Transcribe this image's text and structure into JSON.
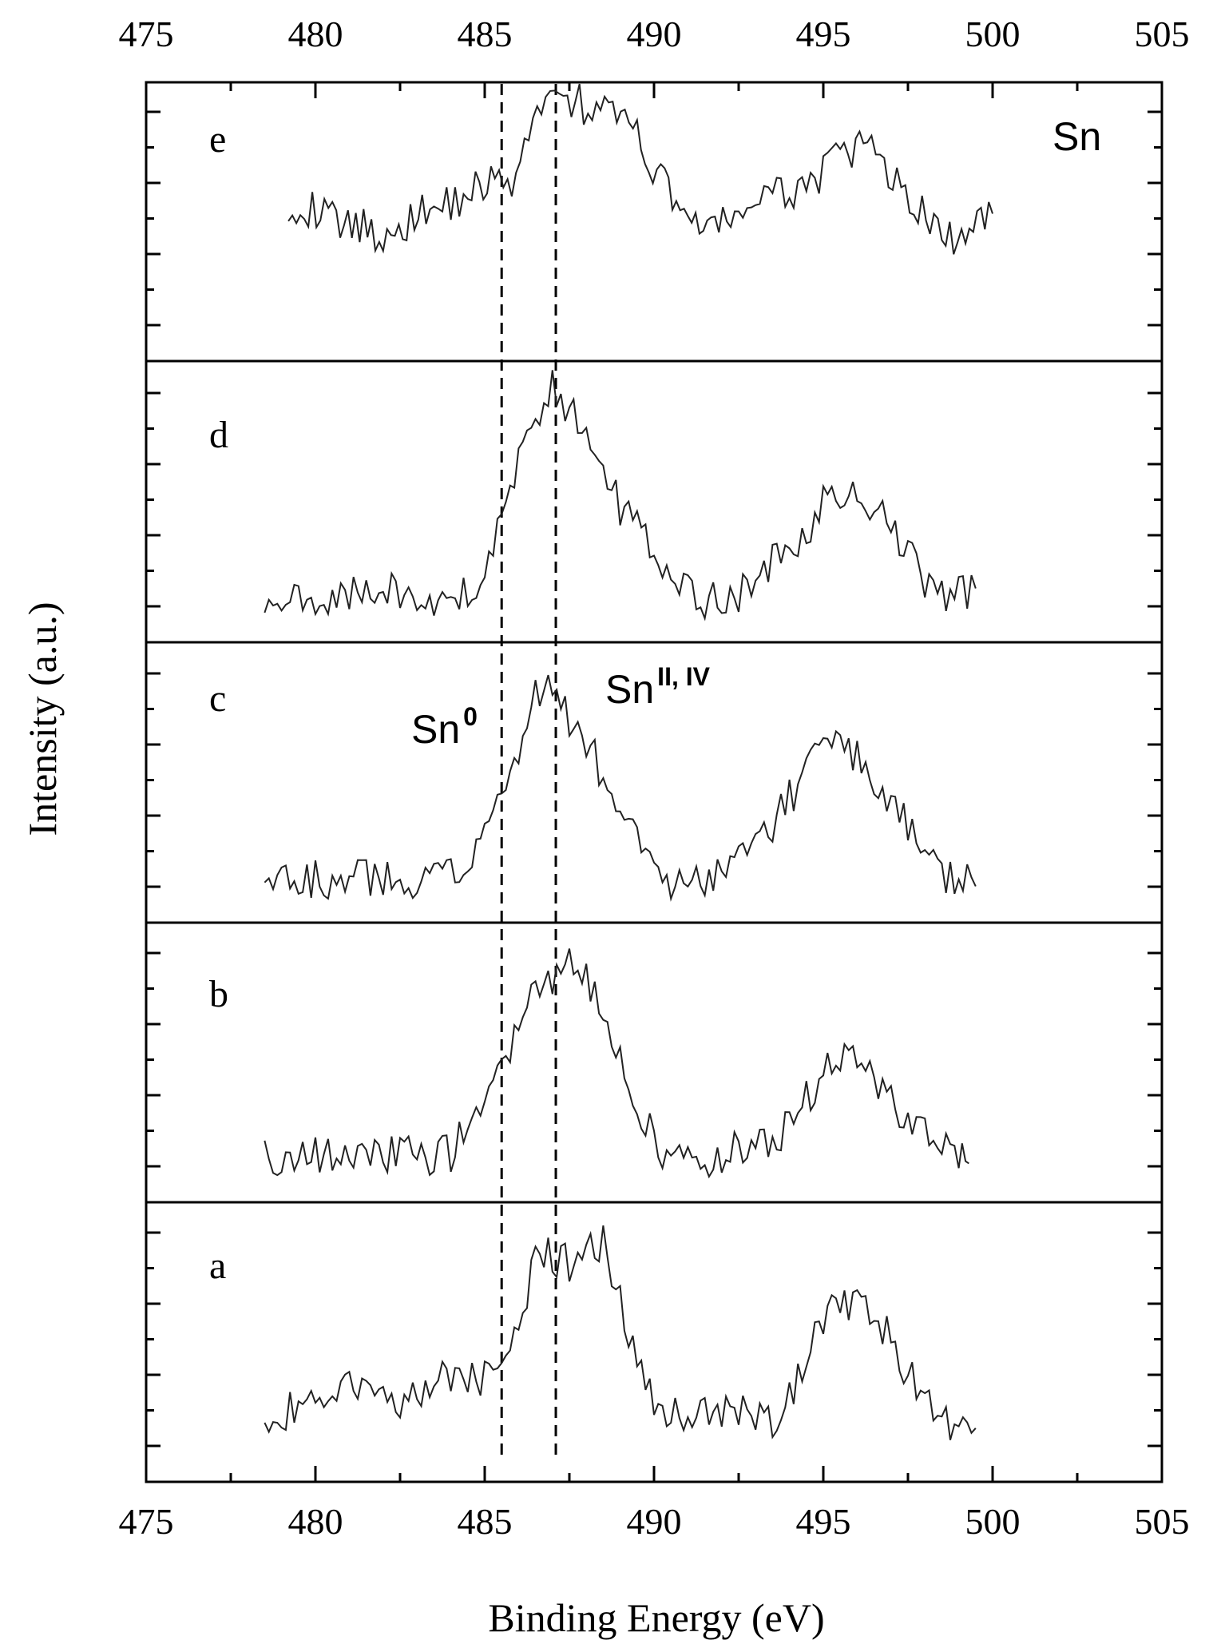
{
  "chart_data": {
    "type": "line",
    "title": "",
    "xlabel": "Binding Energy (eV)",
    "ylabel": "Intensity (a.u.)",
    "xlim": [
      475,
      505
    ],
    "x_ticks": [
      "475",
      "480",
      "485",
      "490",
      "495",
      "500",
      "505"
    ],
    "grid": false,
    "element_label": "Sn",
    "reference_lines": [
      {
        "x": 485.5,
        "label_base": "Sn",
        "label_sup": "0"
      },
      {
        "x": 487.1,
        "label_base": "Sn",
        "label_sup": "II, IV"
      }
    ],
    "panels": [
      {
        "name": "e",
        "x": [
          479.2,
          480.5,
          482.0,
          483.5,
          484.5,
          485.3,
          485.8,
          486.3,
          486.8,
          487.2,
          487.8,
          488.3,
          488.9,
          489.5,
          490.2,
          491.0,
          491.8,
          492.5,
          493.5,
          494.5,
          495.5,
          496.3,
          496.8,
          497.3,
          497.8,
          498.5,
          499.2,
          500.0
        ],
        "y": [
          0.55,
          0.48,
          0.42,
          0.52,
          0.58,
          0.65,
          0.55,
          0.85,
          1.0,
          0.98,
          0.95,
          0.9,
          0.92,
          0.8,
          0.65,
          0.5,
          0.42,
          0.52,
          0.56,
          0.62,
          0.72,
          0.78,
          0.7,
          0.62,
          0.52,
          0.42,
          0.38,
          0.5
        ]
      },
      {
        "name": "d",
        "x": [
          478.5,
          479.5,
          480.5,
          481.5,
          482.5,
          483.5,
          484.5,
          485.0,
          485.5,
          486.0,
          486.5,
          487.0,
          487.5,
          488.0,
          488.5,
          489.0,
          489.5,
          490.0,
          490.5,
          491.0,
          491.5,
          492.0,
          492.5,
          493.0,
          493.5,
          494.0,
          494.5,
          495.0,
          495.5,
          496.0,
          496.5,
          497.0,
          497.5,
          498.0,
          498.5,
          499.0,
          499.5
        ],
        "y": [
          0.08,
          0.06,
          0.1,
          0.13,
          0.1,
          0.08,
          0.12,
          0.2,
          0.38,
          0.62,
          0.8,
          0.92,
          0.85,
          0.72,
          0.55,
          0.45,
          0.38,
          0.28,
          0.18,
          0.1,
          0.06,
          0.08,
          0.1,
          0.15,
          0.22,
          0.28,
          0.36,
          0.45,
          0.5,
          0.48,
          0.44,
          0.35,
          0.25,
          0.15,
          0.08,
          0.1,
          0.12
        ]
      },
      {
        "name": "c",
        "x": [
          478.5,
          479.5,
          480.5,
          481.5,
          482.5,
          483.5,
          484.0,
          484.5,
          485.0,
          485.5,
          486.0,
          486.5,
          487.0,
          487.5,
          488.0,
          488.5,
          489.0,
          489.5,
          490.0,
          490.5,
          491.0,
          491.5,
          492.0,
          492.5,
          493.0,
          493.5,
          494.0,
          494.5,
          495.0,
          495.5,
          496.0,
          496.5,
          497.0,
          497.5,
          498.0,
          498.5,
          499.0,
          499.5
        ],
        "y": [
          0.12,
          0.08,
          0.07,
          0.08,
          0.07,
          0.09,
          0.08,
          0.13,
          0.24,
          0.4,
          0.62,
          0.84,
          0.82,
          0.72,
          0.62,
          0.5,
          0.36,
          0.22,
          0.12,
          0.06,
          0.05,
          0.08,
          0.1,
          0.15,
          0.22,
          0.3,
          0.4,
          0.52,
          0.62,
          0.62,
          0.58,
          0.48,
          0.38,
          0.28,
          0.18,
          0.1,
          0.07,
          0.05
        ]
      },
      {
        "name": "b",
        "x": [
          478.5,
          479.5,
          480.5,
          481.5,
          482.5,
          483.5,
          484.0,
          484.5,
          485.0,
          485.5,
          486.0,
          486.5,
          487.0,
          487.5,
          488.0,
          488.5,
          489.0,
          489.5,
          490.0,
          490.5,
          491.0,
          491.5,
          492.0,
          492.5,
          493.0,
          493.5,
          494.0,
          494.5,
          495.0,
          495.5,
          496.0,
          496.5,
          497.0,
          497.5,
          498.0,
          498.5,
          499.0,
          499.3
        ],
        "y": [
          0.1,
          0.08,
          0.09,
          0.1,
          0.1,
          0.09,
          0.1,
          0.2,
          0.3,
          0.42,
          0.62,
          0.8,
          0.82,
          0.86,
          0.8,
          0.68,
          0.5,
          0.32,
          0.16,
          0.08,
          0.07,
          0.08,
          0.1,
          0.11,
          0.12,
          0.14,
          0.22,
          0.32,
          0.42,
          0.5,
          0.46,
          0.4,
          0.32,
          0.22,
          0.18,
          0.12,
          0.08,
          0.06
        ]
      },
      {
        "name": "a",
        "x": [
          478.5,
          479.5,
          480.5,
          481.5,
          482.5,
          483.5,
          484.5,
          485.0,
          485.5,
          486.0,
          486.5,
          487.0,
          487.5,
          488.0,
          488.5,
          489.0,
          489.5,
          490.0,
          490.5,
          491.0,
          491.5,
          492.0,
          492.5,
          493.0,
          493.5,
          494.0,
          494.5,
          495.0,
          495.5,
          496.0,
          496.5,
          497.0,
          497.5,
          498.0,
          498.5,
          499.0,
          499.5
        ],
        "y": [
          0.1,
          0.22,
          0.3,
          0.26,
          0.24,
          0.3,
          0.34,
          0.32,
          0.36,
          0.58,
          0.78,
          0.82,
          0.78,
          0.84,
          0.88,
          0.62,
          0.42,
          0.24,
          0.18,
          0.16,
          0.18,
          0.19,
          0.2,
          0.18,
          0.16,
          0.24,
          0.42,
          0.58,
          0.64,
          0.6,
          0.56,
          0.48,
          0.34,
          0.22,
          0.14,
          0.14,
          0.12
        ]
      }
    ]
  }
}
